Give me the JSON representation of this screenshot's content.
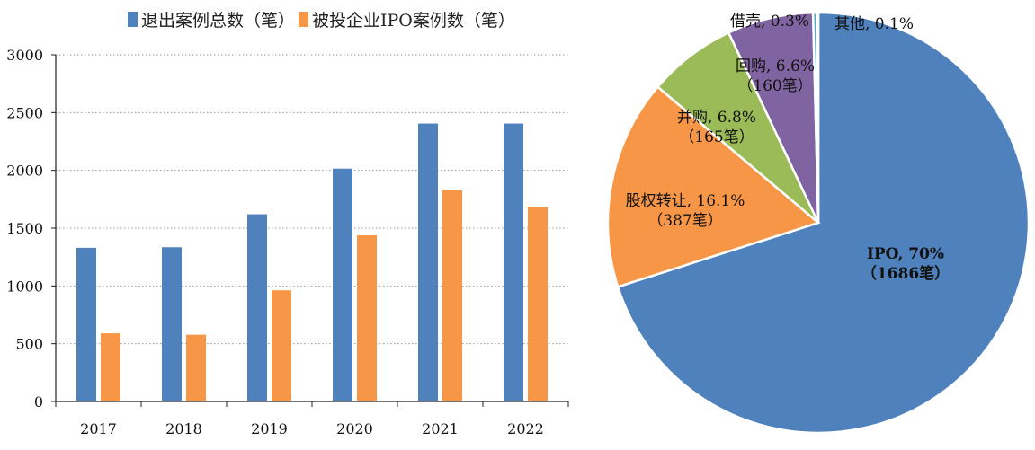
{
  "chart_data": [
    {
      "type": "bar",
      "categories": [
        "2017",
        "2018",
        "2019",
        "2020",
        "2021",
        "2022"
      ],
      "series": [
        {
          "name": "退出案例总数（笔）",
          "values": [
            1330,
            1335,
            1620,
            2015,
            2405,
            2405
          ],
          "color": "#4f81bd"
        },
        {
          "name": "被投企业IPO案例数（笔）",
          "values": [
            590,
            578,
            962,
            1438,
            1830,
            1686
          ],
          "color": "#f79646"
        }
      ],
      "yticks": [
        "0",
        "500",
        "1000",
        "1500",
        "2000",
        "2500",
        "3000"
      ],
      "ylim": [
        0,
        3000
      ],
      "grid": "horizontal-dotted",
      "legend_position": "top"
    },
    {
      "type": "pie",
      "slices": [
        {
          "name": "IPO",
          "percent": 70.0,
          "text": "IPO, 70%",
          "count_text": "（1686笔）",
          "color": "#4f81bd"
        },
        {
          "name": "股权转让",
          "percent": 16.1,
          "text": "股权转让, 16.1%",
          "count_text": "（387笔）",
          "color": "#f79646"
        },
        {
          "name": "并购",
          "percent": 6.8,
          "text": "并购, 6.8%",
          "count_text": "（165笔）",
          "color": "#9bbb59"
        },
        {
          "name": "回购",
          "percent": 6.6,
          "text": "回购, 6.6%",
          "count_text": "（160笔）",
          "color": "#8064a2"
        },
        {
          "name": "借壳",
          "percent": 0.3,
          "text": "借壳, 0.3%",
          "count_text": "",
          "color": "#4bacc6"
        },
        {
          "name": "其他",
          "percent": 0.1,
          "text": "其他, 0.1%",
          "count_text": "",
          "color": "#c0504d"
        }
      ]
    }
  ]
}
